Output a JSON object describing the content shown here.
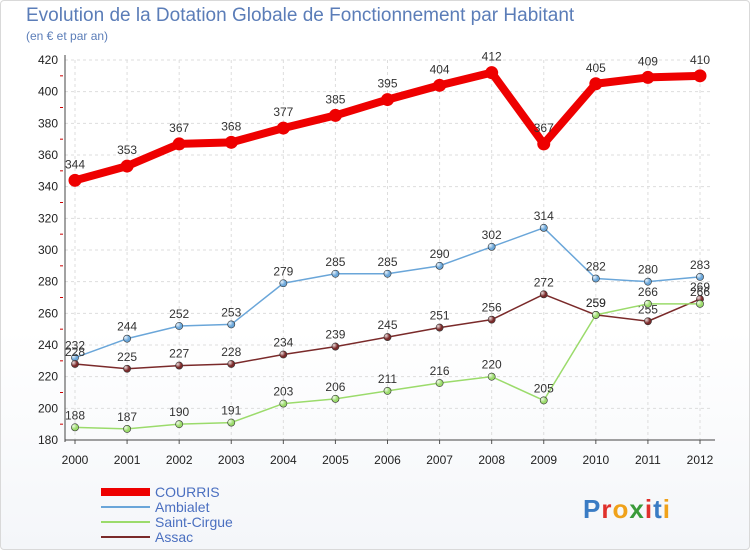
{
  "chart_data": {
    "type": "line",
    "title": "Evolution de la Dotation Globale de Fonctionnement par Habitant",
    "subtitle": "(en € et par an)",
    "x": [
      "2000",
      "2001",
      "2002",
      "2003",
      "2004",
      "2005",
      "2006",
      "2007",
      "2008",
      "2009",
      "2010",
      "2011",
      "2012"
    ],
    "yticks": [
      180,
      200,
      220,
      240,
      260,
      280,
      300,
      320,
      340,
      360,
      380,
      400,
      420
    ],
    "ylim": [
      180,
      420
    ],
    "grid": true,
    "legend_position": "bottom-left",
    "series": [
      {
        "name": "COURRIS",
        "color": "#ee0000",
        "values": [
          344,
          353,
          367,
          368,
          377,
          385,
          395,
          404,
          412,
          367,
          405,
          409,
          410
        ]
      },
      {
        "name": "Ambialet",
        "color": "#6aa6d9",
        "values": [
          232,
          244,
          252,
          253,
          279,
          285,
          285,
          290,
          302,
          314,
          282,
          280,
          283
        ]
      },
      {
        "name": "Saint-Cirgue",
        "color": "#9bdb6b",
        "values": [
          188,
          187,
          190,
          191,
          203,
          206,
          211,
          216,
          220,
          205,
          259,
          266,
          266
        ]
      },
      {
        "name": "Assac",
        "color": "#7a2a2a",
        "values": [
          228,
          225,
          227,
          228,
          234,
          239,
          245,
          251,
          256,
          272,
          259,
          255,
          269
        ]
      }
    ],
    "brand": "Proxiti"
  }
}
